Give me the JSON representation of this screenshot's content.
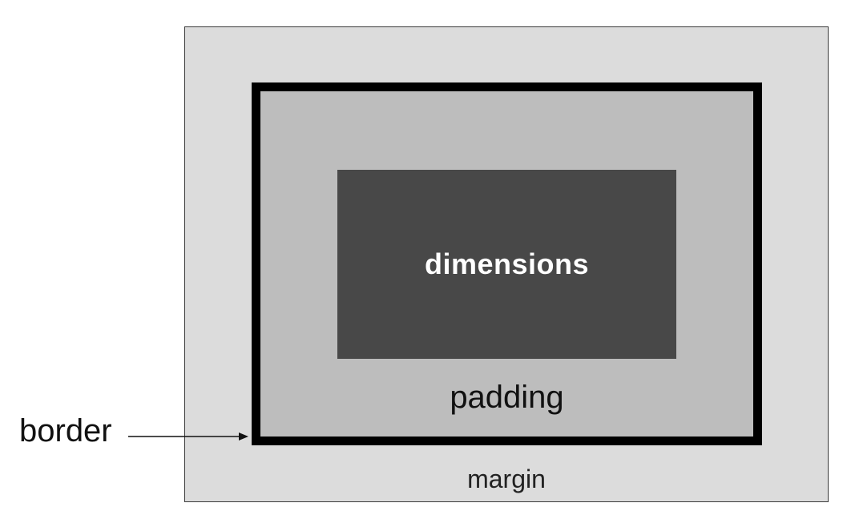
{
  "labels": {
    "content": "dimensions",
    "padding": "padding",
    "margin": "margin",
    "border": "border"
  },
  "colors": {
    "margin": "#dcdcdc",
    "border": "#000000",
    "padding": "#bdbdbd",
    "content": "#484848",
    "content_text": "#ffffff"
  }
}
